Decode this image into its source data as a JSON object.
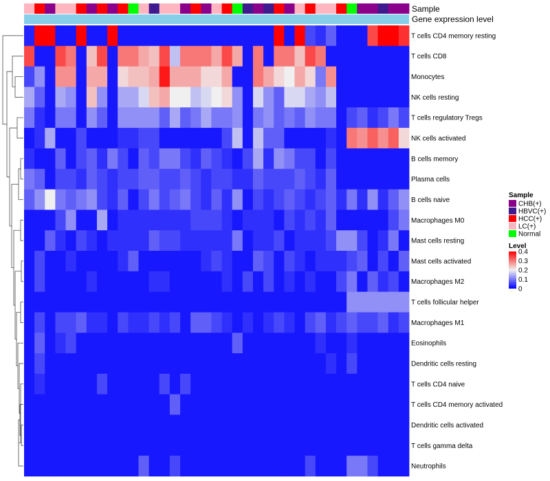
{
  "chart_data": {
    "type": "heatmap",
    "annotation_labels": {
      "sample": "Sample",
      "gene_expression": "Gene expression level"
    },
    "sample_annotation": [
      "LC(+)",
      "HCC(+)",
      "CHB(+)",
      "LC(+)",
      "LC(+)",
      "HCC(+)",
      "CHB(+)",
      "HCC(+)",
      "CHB(+)",
      "HCC(+)",
      "Normal",
      "LC(+)",
      "HBVC(+)",
      "LC(+)",
      "LC(+)",
      "CHB(+)",
      "HCC(+)",
      "CHB(+)",
      "LC(+)",
      "HCC(+)",
      "Normal",
      "HBVC(+)",
      "CHB(+)",
      "HBVC(+)",
      "HCC(+)",
      "CHB(+)",
      "LC(+)",
      "HCC(+)",
      "LC(+)",
      "LC(+)",
      "HCC(+)",
      "Normal",
      "CHB(+)",
      "CHB(+)",
      "HBVC(+)",
      "CHB(+)",
      "CHB(+)"
    ],
    "rows": [
      "T cells CD4 memory resting",
      "T cells CD8",
      "Monocytes",
      "NK cells resting",
      "T cells regulatory  Tregs",
      "NK cells activated",
      "B cells memory",
      "Plasma cells",
      "B cells naive",
      "Macrophages M0",
      "Mast cells resting",
      "Mast cells activated",
      "Macrophages M2",
      "T cells follicular helper",
      "Macrophages M1",
      "Eosinophils",
      "Dendritic cells resting",
      "T cells CD4 naive",
      "T cells CD4 memory activated",
      "Dendritic cells activated",
      "T cells gamma delta",
      "Neutrophils"
    ],
    "values": [
      [
        0.03,
        0.4,
        0.4,
        0.02,
        0.02,
        0.4,
        0.02,
        0.02,
        0.4,
        0.02,
        0.02,
        0.02,
        0.02,
        0.02,
        0.02,
        0.02,
        0.02,
        0.02,
        0.02,
        0.02,
        0.02,
        0.02,
        0.02,
        0.02,
        0.4,
        0.02,
        0.4,
        0.06,
        0.04,
        0.08,
        0.02,
        0.02,
        0.02,
        0.34,
        0.4,
        0.4,
        0.36
      ],
      [
        0.34,
        0.02,
        0.02,
        0.34,
        0.3,
        0.02,
        0.24,
        0.34,
        0.02,
        0.3,
        0.3,
        0.26,
        0.24,
        0.34,
        0.16,
        0.3,
        0.3,
        0.3,
        0.26,
        0.34,
        0.26,
        0.02,
        0.3,
        0.02,
        0.3,
        0.3,
        0.24,
        0.34,
        0.3,
        0.02,
        0.02,
        0.02,
        0.02,
        0.02,
        0.02,
        0.02,
        0.02
      ],
      [
        0.06,
        0.12,
        0.02,
        0.28,
        0.28,
        0.02,
        0.26,
        0.26,
        0.02,
        0.22,
        0.24,
        0.24,
        0.26,
        0.38,
        0.26,
        0.26,
        0.26,
        0.22,
        0.22,
        0.26,
        0.02,
        0.02,
        0.3,
        0.26,
        0.22,
        0.2,
        0.26,
        0.22,
        0.1,
        0.28,
        0.02,
        0.02,
        0.02,
        0.02,
        0.02,
        0.02,
        0.02
      ],
      [
        0.14,
        0.08,
        0.02,
        0.14,
        0.12,
        0.02,
        0.24,
        0.12,
        0.02,
        0.14,
        0.14,
        0.18,
        0.24,
        0.26,
        0.2,
        0.2,
        0.16,
        0.18,
        0.2,
        0.22,
        0.12,
        0.02,
        0.18,
        0.12,
        0.08,
        0.18,
        0.18,
        0.14,
        0.12,
        0.16,
        0.02,
        0.02,
        0.02,
        0.02,
        0.02,
        0.02,
        0.02
      ],
      [
        0.1,
        0.04,
        0.02,
        0.1,
        0.1,
        0.02,
        0.12,
        0.08,
        0.02,
        0.12,
        0.12,
        0.12,
        0.12,
        0.08,
        0.14,
        0.08,
        0.1,
        0.14,
        0.1,
        0.1,
        0.12,
        0.02,
        0.1,
        0.12,
        0.08,
        0.1,
        0.08,
        0.12,
        0.1,
        0.1,
        0.02,
        0.06,
        0.08,
        0.04,
        0.06,
        0.1,
        0.06
      ],
      [
        0.02,
        0.04,
        0.14,
        0.02,
        0.02,
        0.06,
        0.02,
        0.02,
        0.02,
        0.04,
        0.04,
        0.06,
        0.06,
        0.02,
        0.02,
        0.02,
        0.02,
        0.02,
        0.02,
        0.06,
        0.16,
        0.02,
        0.16,
        0.08,
        0.08,
        0.02,
        0.02,
        0.02,
        0.02,
        0.04,
        0.02,
        0.3,
        0.28,
        0.32,
        0.28,
        0.32,
        0.22
      ],
      [
        0.04,
        0.02,
        0.02,
        0.08,
        0.02,
        0.06,
        0.08,
        0.04,
        0.1,
        0.06,
        0.02,
        0.08,
        0.06,
        0.1,
        0.1,
        0.06,
        0.04,
        0.08,
        0.06,
        0.04,
        0.02,
        0.06,
        0.14,
        0.04,
        0.12,
        0.1,
        0.06,
        0.06,
        0.02,
        0.06,
        0.02,
        0.02,
        0.02,
        0.02,
        0.02,
        0.02,
        0.02
      ],
      [
        0.1,
        0.08,
        0.02,
        0.06,
        0.06,
        0.04,
        0.08,
        0.06,
        0.04,
        0.06,
        0.06,
        0.08,
        0.08,
        0.06,
        0.06,
        0.08,
        0.06,
        0.04,
        0.06,
        0.06,
        0.04,
        0.04,
        0.08,
        0.06,
        0.06,
        0.06,
        0.08,
        0.06,
        0.04,
        0.08,
        0.02,
        0.02,
        0.02,
        0.02,
        0.02,
        0.02,
        0.02
      ],
      [
        0.08,
        0.12,
        0.2,
        0.1,
        0.08,
        0.1,
        0.12,
        0.06,
        0.04,
        0.08,
        0.02,
        0.06,
        0.1,
        0.06,
        0.08,
        0.1,
        0.06,
        0.04,
        0.08,
        0.04,
        0.12,
        0.02,
        0.06,
        0.04,
        0.06,
        0.08,
        0.06,
        0.04,
        0.06,
        0.08,
        0.04,
        0.1,
        0.04,
        0.12,
        0.04,
        0.08,
        0.12
      ],
      [
        0.02,
        0.02,
        0.02,
        0.06,
        0.12,
        0.02,
        0.02,
        0.14,
        0.02,
        0.04,
        0.04,
        0.04,
        0.04,
        0.04,
        0.04,
        0.04,
        0.06,
        0.06,
        0.06,
        0.04,
        0.02,
        0.04,
        0.04,
        0.04,
        0.02,
        0.06,
        0.04,
        0.06,
        0.04,
        0.08,
        0.02,
        0.02,
        0.02,
        0.02,
        0.02,
        0.06,
        0.1
      ],
      [
        0.02,
        0.02,
        0.08,
        0.04,
        0.02,
        0.06,
        0.04,
        0.02,
        0.04,
        0.04,
        0.04,
        0.04,
        0.08,
        0.06,
        0.06,
        0.04,
        0.04,
        0.04,
        0.04,
        0.04,
        0.1,
        0.02,
        0.04,
        0.04,
        0.06,
        0.02,
        0.04,
        0.04,
        0.04,
        0.06,
        0.12,
        0.12,
        0.06,
        0.02,
        0.04,
        0.1,
        0.02
      ],
      [
        0.02,
        0.06,
        0.02,
        0.02,
        0.04,
        0.02,
        0.02,
        0.02,
        0.02,
        0.04,
        0.08,
        0.02,
        0.02,
        0.02,
        0.02,
        0.02,
        0.02,
        0.04,
        0.06,
        0.04,
        0.02,
        0.02,
        0.08,
        0.06,
        0.02,
        0.06,
        0.04,
        0.02,
        0.04,
        0.04,
        0.04,
        0.06,
        0.08,
        0.02,
        0.06,
        0.02,
        0.08
      ],
      [
        0.02,
        0.06,
        0.02,
        0.02,
        0.02,
        0.02,
        0.04,
        0.02,
        0.02,
        0.02,
        0.02,
        0.02,
        0.04,
        0.04,
        0.02,
        0.02,
        0.02,
        0.02,
        0.02,
        0.04,
        0.02,
        0.06,
        0.02,
        0.06,
        0.02,
        0.04,
        0.02,
        0.04,
        0.02,
        0.02,
        0.06,
        0.1,
        0.02,
        0.08,
        0.04,
        0.06,
        0.02
      ],
      [
        0.02,
        0.02,
        0.02,
        0.02,
        0.02,
        0.02,
        0.02,
        0.02,
        0.02,
        0.02,
        0.02,
        0.02,
        0.02,
        0.02,
        0.02,
        0.02,
        0.02,
        0.02,
        0.02,
        0.02,
        0.02,
        0.02,
        0.02,
        0.02,
        0.02,
        0.02,
        0.02,
        0.02,
        0.02,
        0.02,
        0.02,
        0.12,
        0.12,
        0.12,
        0.12,
        0.12,
        0.12
      ],
      [
        0.02,
        0.06,
        0.02,
        0.06,
        0.06,
        0.08,
        0.04,
        0.04,
        0.02,
        0.06,
        0.04,
        0.04,
        0.06,
        0.04,
        0.06,
        0.02,
        0.08,
        0.08,
        0.06,
        0.04,
        0.02,
        0.04,
        0.02,
        0.04,
        0.06,
        0.04,
        0.02,
        0.06,
        0.08,
        0.04,
        0.06,
        0.08,
        0.06,
        0.06,
        0.08,
        0.04,
        0.06
      ],
      [
        0.02,
        0.08,
        0.02,
        0.04,
        0.06,
        0.02,
        0.02,
        0.02,
        0.02,
        0.02,
        0.02,
        0.02,
        0.02,
        0.02,
        0.02,
        0.02,
        0.02,
        0.02,
        0.02,
        0.02,
        0.08,
        0.02,
        0.02,
        0.02,
        0.02,
        0.02,
        0.02,
        0.02,
        0.04,
        0.02,
        0.02,
        0.04,
        0.02,
        0.02,
        0.02,
        0.02,
        0.02
      ],
      [
        0.02,
        0.06,
        0.02,
        0.02,
        0.02,
        0.02,
        0.02,
        0.02,
        0.02,
        0.02,
        0.02,
        0.02,
        0.02,
        0.02,
        0.02,
        0.02,
        0.02,
        0.02,
        0.02,
        0.02,
        0.02,
        0.02,
        0.02,
        0.02,
        0.02,
        0.02,
        0.02,
        0.02,
        0.02,
        0.04,
        0.02,
        0.06,
        0.02,
        0.02,
        0.02,
        0.02,
        0.02
      ],
      [
        0.02,
        0.04,
        0.02,
        0.02,
        0.02,
        0.02,
        0.02,
        0.06,
        0.02,
        0.02,
        0.02,
        0.02,
        0.02,
        0.06,
        0.02,
        0.06,
        0.02,
        0.02,
        0.02,
        0.02,
        0.02,
        0.02,
        0.02,
        0.02,
        0.02,
        0.02,
        0.02,
        0.02,
        0.02,
        0.02,
        0.02,
        0.02,
        0.02,
        0.02,
        0.02,
        0.02,
        0.02
      ],
      [
        0.02,
        0.02,
        0.02,
        0.02,
        0.02,
        0.02,
        0.02,
        0.02,
        0.02,
        0.02,
        0.02,
        0.02,
        0.02,
        0.02,
        0.08,
        0.02,
        0.02,
        0.02,
        0.02,
        0.02,
        0.02,
        0.02,
        0.02,
        0.02,
        0.02,
        0.02,
        0.02,
        0.02,
        0.02,
        0.02,
        0.02,
        0.02,
        0.02,
        0.02,
        0.02,
        0.02,
        0.02
      ],
      [
        0.02,
        0.02,
        0.02,
        0.02,
        0.02,
        0.02,
        0.02,
        0.02,
        0.02,
        0.02,
        0.02,
        0.02,
        0.02,
        0.02,
        0.02,
        0.02,
        0.02,
        0.02,
        0.02,
        0.02,
        0.02,
        0.02,
        0.02,
        0.02,
        0.02,
        0.02,
        0.02,
        0.02,
        0.02,
        0.02,
        0.02,
        0.02,
        0.02,
        0.02,
        0.02,
        0.02,
        0.02
      ],
      [
        0.02,
        0.02,
        0.02,
        0.02,
        0.02,
        0.02,
        0.02,
        0.02,
        0.02,
        0.02,
        0.02,
        0.02,
        0.02,
        0.02,
        0.02,
        0.02,
        0.02,
        0.02,
        0.02,
        0.02,
        0.02,
        0.02,
        0.02,
        0.02,
        0.02,
        0.02,
        0.02,
        0.02,
        0.02,
        0.02,
        0.02,
        0.02,
        0.02,
        0.02,
        0.02,
        0.02,
        0.02
      ],
      [
        0.02,
        0.02,
        0.02,
        0.02,
        0.02,
        0.02,
        0.02,
        0.02,
        0.02,
        0.02,
        0.02,
        0.08,
        0.02,
        0.02,
        0.06,
        0.02,
        0.02,
        0.02,
        0.02,
        0.02,
        0.02,
        0.02,
        0.02,
        0.02,
        0.02,
        0.02,
        0.02,
        0.06,
        0.02,
        0.02,
        0.02,
        0.1,
        0.1,
        0.06,
        0.02,
        0.02,
        0.02
      ]
    ],
    "legend": {
      "sample_title": "Sample",
      "groups": [
        {
          "name": "CHB(+)",
          "color": "#8B008B"
        },
        {
          "name": "HBVC(+)",
          "color": "#3F1A8F"
        },
        {
          "name": "HCC(+)",
          "color": "#FF0000"
        },
        {
          "name": "LC(+)",
          "color": "#FFB6C1"
        },
        {
          "name": "Normal",
          "color": "#00FF00"
        }
      ],
      "level_title": "Level",
      "level_ticks": [
        "0.4",
        "0.3",
        "0.2",
        "0.1",
        "0"
      ],
      "level_range": [
        0,
        0.4
      ]
    },
    "gene_expression_color": "#87CEEB",
    "color_scale": {
      "low": "#0000FF",
      "mid": "#F0F0F0",
      "high": "#FF0000",
      "mid_value": 0.2
    }
  }
}
